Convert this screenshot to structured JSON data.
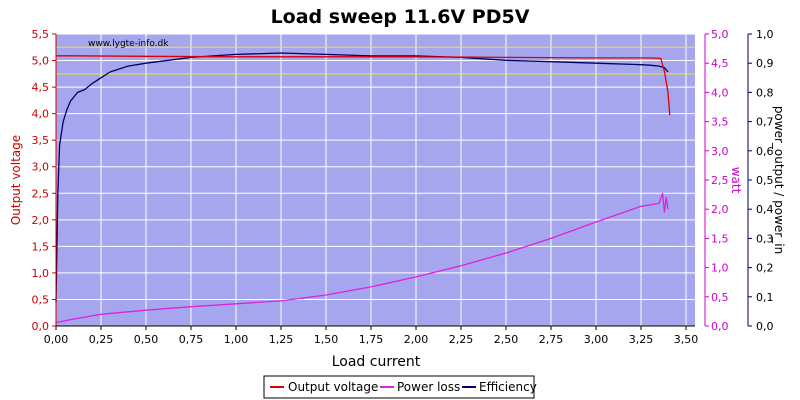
{
  "chart_data": {
    "type": "line",
    "title": "Load sweep 11.6V PD5V",
    "watermark": "www.lygte-info.dk",
    "xlabel": "Load current",
    "ylabel_left": "Output voltage",
    "ylabel_right1": "watt",
    "ylabel_right2": "power_output / power_in",
    "xlim": [
      0,
      3.55
    ],
    "ylim_left": [
      0,
      5.5
    ],
    "ylim_right1": [
      0,
      5.0
    ],
    "ylim_right2": [
      0,
      1.0
    ],
    "x_ticks": [
      "0,00",
      "0,25",
      "0,50",
      "0,75",
      "1,00",
      "1,25",
      "1,50",
      "1,75",
      "2,00",
      "2,25",
      "2,50",
      "2,75",
      "3,00",
      "3,25",
      "3,50"
    ],
    "y_left_ticks": [
      "0,0",
      "0,5",
      "1,0",
      "1,5",
      "2,0",
      "2,5",
      "3,0",
      "3,5",
      "4,0",
      "4,5",
      "5,0",
      "5,5"
    ],
    "y_right1_ticks": [
      "0,0",
      "0,5",
      "1,0",
      "1,5",
      "2,0",
      "2,5",
      "3,0",
      "3,5",
      "4,0",
      "4,5",
      "5,0"
    ],
    "y_right2_ticks": [
      "0,0",
      "0,1",
      "0,2",
      "0,3",
      "0,4",
      "0,5",
      "0,6",
      "0,7",
      "0,8",
      "0,9",
      "1,0"
    ],
    "reference_lines_left": [
      5.25,
      4.75
    ],
    "grid": true,
    "legend_position": "bottom-center",
    "colors": {
      "plot_bg": "#a6a6ee",
      "grid": "#ffffff",
      "output_voltage": "#dd0000",
      "power_loss": "#dd22dd",
      "efficiency": "#000066",
      "reference": "#eeee00",
      "left_axis": "#cc0000",
      "right1_axis": "#cc00cc",
      "right2_axis": "#000066"
    },
    "series": [
      {
        "name": "Output voltage",
        "axis": "left",
        "x": [
          0.0,
          0.1,
          0.5,
          1.0,
          1.5,
          2.0,
          2.5,
          3.0,
          3.3,
          3.36,
          3.38,
          3.4,
          3.41
        ],
        "values": [
          5.09,
          5.09,
          5.08,
          5.07,
          5.07,
          5.07,
          5.06,
          5.05,
          5.05,
          5.04,
          4.8,
          4.4,
          3.97
        ]
      },
      {
        "name": "Power loss",
        "axis": "right1",
        "x": [
          0.0,
          0.1,
          0.25,
          0.5,
          0.75,
          1.0,
          1.25,
          1.5,
          1.75,
          2.0,
          2.25,
          2.5,
          2.75,
          3.0,
          3.25,
          3.35,
          3.37,
          3.38,
          3.39,
          3.4
        ],
        "values": [
          0.06,
          0.12,
          0.2,
          0.27,
          0.33,
          0.38,
          0.43,
          0.53,
          0.67,
          0.84,
          1.03,
          1.25,
          1.5,
          1.78,
          2.05,
          2.1,
          2.27,
          1.95,
          2.2,
          2.0
        ]
      },
      {
        "name": "Efficiency",
        "axis": "right2",
        "x": [
          0.0,
          0.01,
          0.02,
          0.04,
          0.06,
          0.08,
          0.12,
          0.16,
          0.2,
          0.25,
          0.3,
          0.4,
          0.5,
          0.75,
          1.0,
          1.25,
          1.5,
          1.75,
          2.0,
          2.25,
          2.5,
          2.75,
          3.0,
          3.25,
          3.3,
          3.35,
          3.38,
          3.4
        ],
        "values": [
          0.08,
          0.45,
          0.62,
          0.7,
          0.74,
          0.77,
          0.8,
          0.81,
          0.83,
          0.85,
          0.87,
          0.89,
          0.9,
          0.92,
          0.93,
          0.935,
          0.93,
          0.925,
          0.925,
          0.92,
          0.91,
          0.905,
          0.9,
          0.895,
          0.893,
          0.89,
          0.885,
          0.87
        ]
      }
    ]
  }
}
